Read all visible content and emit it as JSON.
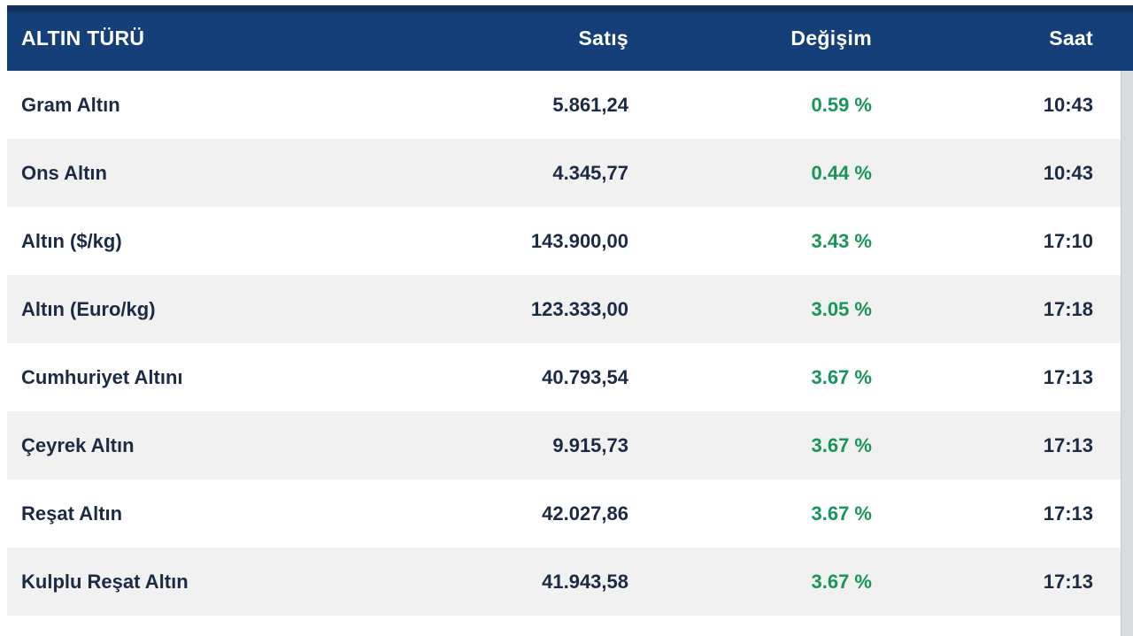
{
  "table": {
    "columns": [
      {
        "key": "name",
        "label": "ALTIN TÜRÜ"
      },
      {
        "key": "satis",
        "label": "Satış"
      },
      {
        "key": "degisim",
        "label": "Değişim"
      },
      {
        "key": "saat",
        "label": "Saat"
      }
    ],
    "rows": [
      {
        "name": "Gram Altın",
        "satis": "5.861,24",
        "degisim": "0.59 %",
        "saat": "10:43"
      },
      {
        "name": "Ons Altın",
        "satis": "4.345,77",
        "degisim": "0.44 %",
        "saat": "10:43"
      },
      {
        "name": "Altın ($/kg)",
        "satis": "143.900,00",
        "degisim": "3.43 %",
        "saat": "17:10"
      },
      {
        "name": "Altın (Euro/kg)",
        "satis": "123.333,00",
        "degisim": "3.05 %",
        "saat": "17:18"
      },
      {
        "name": "Cumhuriyet Altını",
        "satis": "40.793,54",
        "degisim": "3.67 %",
        "saat": "17:13"
      },
      {
        "name": "Çeyrek Altın",
        "satis": "9.915,73",
        "degisim": "3.67 %",
        "saat": "17:13"
      },
      {
        "name": "Reşat Altın",
        "satis": "42.027,86",
        "degisim": "3.67 %",
        "saat": "17:13"
      },
      {
        "name": "Kulplu Reşat Altın",
        "satis": "41.943,58",
        "degisim": "3.67 %",
        "saat": "17:13"
      }
    ],
    "colors": {
      "header_bg": "#153f78",
      "header_top_edge": "#12325e",
      "header_text": "#ffffff",
      "row_text": "#1b2b45",
      "change_positive": "#189558",
      "row_alt_bg": "#f1f1f1",
      "row_bg": "#ffffff",
      "scrollbar_track": "#d9dcdf"
    }
  }
}
